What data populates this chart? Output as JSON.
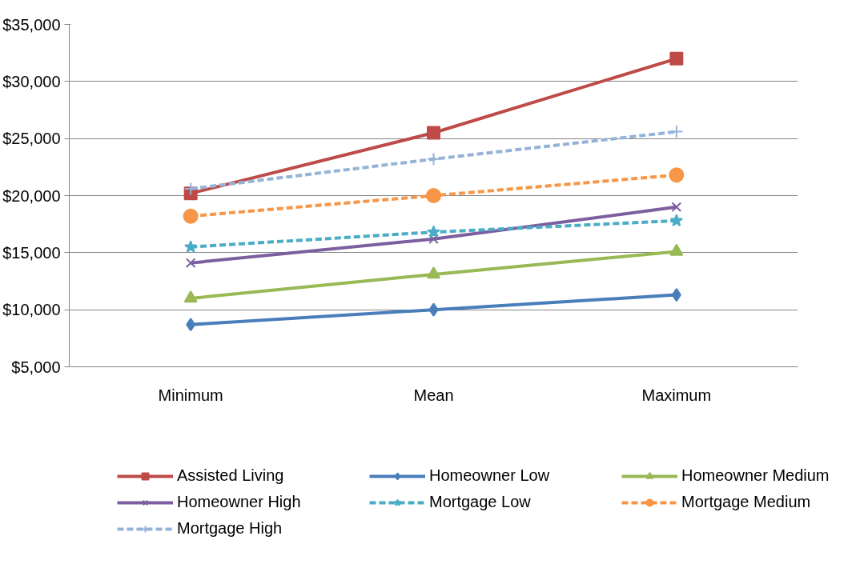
{
  "chart_data": {
    "type": "line",
    "categories": [
      "Minimum",
      "Mean",
      "Maximum"
    ],
    "series": [
      {
        "name": "Assisted Living",
        "color": "#be4b48",
        "marker": "square",
        "line_style": "solid",
        "values": [
          20200,
          25500,
          32000
        ]
      },
      {
        "name": "Homeowner Low",
        "color": "#4a7ebb",
        "marker": "diamond",
        "line_style": "solid",
        "values": [
          8700,
          10000,
          11300
        ]
      },
      {
        "name": "Homeowner Medium",
        "color": "#98b954",
        "marker": "triangle",
        "line_style": "solid",
        "values": [
          11000,
          13100,
          15100
        ]
      },
      {
        "name": "Homeowner High",
        "color": "#7d5fa0",
        "marker": "x",
        "line_style": "solid",
        "values": [
          14100,
          16200,
          19000
        ]
      },
      {
        "name": "Mortgage Low",
        "color": "#4bacc6",
        "marker": "star",
        "line_style": "dashed",
        "values": [
          15500,
          16800,
          17800
        ]
      },
      {
        "name": "Mortgage Medium",
        "color": "#f79646",
        "marker": "circle",
        "line_style": "dashed",
        "values": [
          18200,
          20000,
          21800
        ]
      },
      {
        "name": "Mortgage High",
        "color": "#95b3d7",
        "marker": "cross",
        "line_style": "dashed",
        "values": [
          20600,
          23200,
          25600
        ]
      }
    ],
    "ylim": [
      5000,
      35000
    ],
    "yticks": [
      {
        "value": 5000,
        "label": "$5,000"
      },
      {
        "value": 10000,
        "label": "$10,000"
      },
      {
        "value": 15000,
        "label": "$15,000"
      },
      {
        "value": 20000,
        "label": "$20,000"
      },
      {
        "value": 25000,
        "label": "$25,000"
      },
      {
        "value": 30000,
        "label": "$30,000"
      },
      {
        "value": 35000,
        "label": "$35,000"
      }
    ],
    "grid": "y",
    "legend": "bottom"
  }
}
